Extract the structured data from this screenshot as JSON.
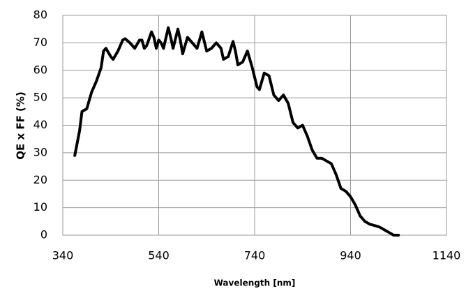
{
  "chart_data": {
    "type": "line",
    "xlabel": "Wavelength [nm]",
    "ylabel": "QE x FF (%)",
    "x": [
      365,
      375,
      380,
      390,
      400,
      410,
      420,
      425,
      430,
      440,
      445,
      455,
      465,
      470,
      480,
      490,
      500,
      505,
      510,
      515,
      525,
      530,
      535,
      540,
      545,
      550,
      560,
      565,
      570,
      580,
      585,
      590,
      600,
      610,
      620,
      630,
      640,
      650,
      660,
      670,
      675,
      685,
      695,
      700,
      705,
      715,
      725,
      735,
      745,
      750,
      760,
      770,
      780,
      790,
      800,
      810,
      820,
      830,
      840,
      850,
      860,
      870,
      880,
      890,
      900,
      910,
      920,
      930,
      940,
      950,
      960,
      970,
      980,
      990,
      1000,
      1010,
      1020,
      1030,
      1040
    ],
    "series": [
      {
        "color": "#000000",
        "values": [
          29,
          38,
          45,
          46,
          52,
          56,
          61,
          67,
          68,
          65,
          64,
          67,
          71,
          71.5,
          70,
          68,
          71,
          71,
          68,
          69,
          74,
          72,
          68,
          71,
          70,
          68,
          75.5,
          72,
          68,
          75,
          71,
          66,
          72,
          70,
          68,
          74,
          67,
          68,
          70,
          68,
          64,
          65,
          70.5,
          67,
          62,
          63,
          67,
          61,
          54,
          53,
          59,
          58,
          51,
          49,
          51,
          48,
          41,
          39,
          40,
          36,
          31,
          28,
          28,
          27,
          26,
          22,
          17,
          16,
          14,
          11,
          7,
          5,
          4,
          3.5,
          3,
          2,
          1,
          0,
          0
        ]
      }
    ],
    "xlim": [
      340,
      1140
    ],
    "xticks": [
      340,
      540,
      740,
      940,
      1140
    ],
    "ylim": [
      0,
      80
    ],
    "yticks": [
      0,
      10,
      20,
      30,
      40,
      50,
      60,
      70,
      80
    ],
    "grid": true
  }
}
